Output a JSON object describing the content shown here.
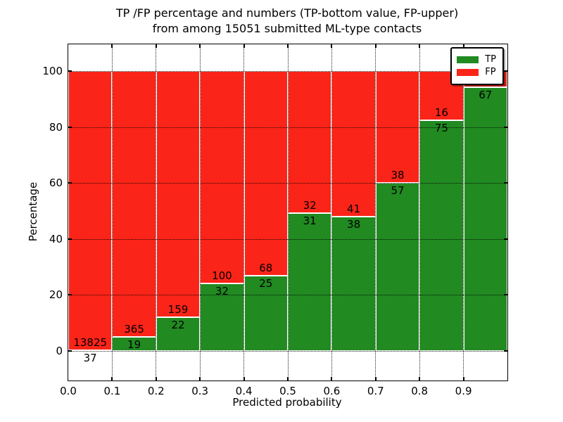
{
  "figure": {
    "title_line1": "TP /FP percentage and numbers (TP-bottom value, FP-upper)",
    "title_line2": "from among 15051 submitted ML-type contacts"
  },
  "axes": {
    "ylabel": "Percentage",
    "xlabel": "Predicted probability",
    "yticks": [
      0,
      20,
      40,
      60,
      80,
      100
    ],
    "xtick_labels": [
      "0.0",
      "0.1",
      "0.2",
      "0.3",
      "0.4",
      "0.5",
      "0.6",
      "0.7",
      "0.8",
      "0.9"
    ]
  },
  "legend": {
    "items": [
      {
        "label": "TP",
        "color": "#218a21"
      },
      {
        "label": "FP",
        "color": "#fb2418"
      }
    ]
  },
  "chart_data": {
    "type": "bar",
    "stacked": true,
    "orientation": "vertical",
    "title": "TP /FP percentage and numbers (TP-bottom value, FP-upper) from among 15051 submitted ML-type contacts",
    "xlabel": "Predicted probability",
    "ylabel": "Percentage",
    "xlim": [
      0.0,
      1.0
    ],
    "ylim": [
      -11,
      110
    ],
    "bin_width": 0.1,
    "grid": "dotted, both axes",
    "legend_position": "upper right",
    "total_contacts": 15051,
    "categories": [
      "0.0-0.1",
      "0.1-0.2",
      "0.2-0.3",
      "0.3-0.4",
      "0.4-0.5",
      "0.5-0.6",
      "0.6-0.7",
      "0.7-0.8",
      "0.8-0.9",
      "0.9-1.0"
    ],
    "series": [
      {
        "name": "TP",
        "color": "#218a21",
        "counts": [
          37,
          19,
          22,
          32,
          25,
          31,
          38,
          57,
          75,
          67
        ]
      },
      {
        "name": "FP",
        "color": "#fb2418",
        "counts": [
          13825,
          365,
          159,
          100,
          68,
          32,
          41,
          38,
          16,
          null
        ]
      }
    ],
    "tp_percentages": [
      0.27,
      4.95,
      12.15,
      24.24,
      26.88,
      49.21,
      48.1,
      60.0,
      82.42,
      94.3
    ],
    "notes": {
      "last_bin_fp_label": "not visible (covered by legend box)",
      "first_bin_tp_label": "drawn below the 0% axis line"
    }
  }
}
